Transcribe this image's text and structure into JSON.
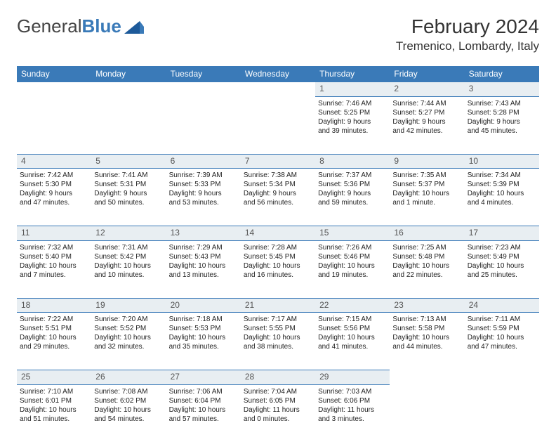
{
  "brand": {
    "part1": "General",
    "part2": "Blue"
  },
  "title": "February 2024",
  "location": "Tremenico, Lombardy, Italy",
  "colors": {
    "header_bg": "#3a7ab8",
    "header_text": "#ffffff",
    "daynum_bg": "#e8eef2",
    "rule": "#3a7ab8",
    "page_bg": "#ffffff",
    "text": "#222222"
  },
  "weekdays": [
    "Sunday",
    "Monday",
    "Tuesday",
    "Wednesday",
    "Thursday",
    "Friday",
    "Saturday"
  ],
  "weeks": [
    [
      null,
      null,
      null,
      null,
      {
        "n": "1",
        "sr": "Sunrise: 7:46 AM",
        "ss": "Sunset: 5:25 PM",
        "dl1": "Daylight: 9 hours",
        "dl2": "and 39 minutes."
      },
      {
        "n": "2",
        "sr": "Sunrise: 7:44 AM",
        "ss": "Sunset: 5:27 PM",
        "dl1": "Daylight: 9 hours",
        "dl2": "and 42 minutes."
      },
      {
        "n": "3",
        "sr": "Sunrise: 7:43 AM",
        "ss": "Sunset: 5:28 PM",
        "dl1": "Daylight: 9 hours",
        "dl2": "and 45 minutes."
      }
    ],
    [
      {
        "n": "4",
        "sr": "Sunrise: 7:42 AM",
        "ss": "Sunset: 5:30 PM",
        "dl1": "Daylight: 9 hours",
        "dl2": "and 47 minutes."
      },
      {
        "n": "5",
        "sr": "Sunrise: 7:41 AM",
        "ss": "Sunset: 5:31 PM",
        "dl1": "Daylight: 9 hours",
        "dl2": "and 50 minutes."
      },
      {
        "n": "6",
        "sr": "Sunrise: 7:39 AM",
        "ss": "Sunset: 5:33 PM",
        "dl1": "Daylight: 9 hours",
        "dl2": "and 53 minutes."
      },
      {
        "n": "7",
        "sr": "Sunrise: 7:38 AM",
        "ss": "Sunset: 5:34 PM",
        "dl1": "Daylight: 9 hours",
        "dl2": "and 56 minutes."
      },
      {
        "n": "8",
        "sr": "Sunrise: 7:37 AM",
        "ss": "Sunset: 5:36 PM",
        "dl1": "Daylight: 9 hours",
        "dl2": "and 59 minutes."
      },
      {
        "n": "9",
        "sr": "Sunrise: 7:35 AM",
        "ss": "Sunset: 5:37 PM",
        "dl1": "Daylight: 10 hours",
        "dl2": "and 1 minute."
      },
      {
        "n": "10",
        "sr": "Sunrise: 7:34 AM",
        "ss": "Sunset: 5:39 PM",
        "dl1": "Daylight: 10 hours",
        "dl2": "and 4 minutes."
      }
    ],
    [
      {
        "n": "11",
        "sr": "Sunrise: 7:32 AM",
        "ss": "Sunset: 5:40 PM",
        "dl1": "Daylight: 10 hours",
        "dl2": "and 7 minutes."
      },
      {
        "n": "12",
        "sr": "Sunrise: 7:31 AM",
        "ss": "Sunset: 5:42 PM",
        "dl1": "Daylight: 10 hours",
        "dl2": "and 10 minutes."
      },
      {
        "n": "13",
        "sr": "Sunrise: 7:29 AM",
        "ss": "Sunset: 5:43 PM",
        "dl1": "Daylight: 10 hours",
        "dl2": "and 13 minutes."
      },
      {
        "n": "14",
        "sr": "Sunrise: 7:28 AM",
        "ss": "Sunset: 5:45 PM",
        "dl1": "Daylight: 10 hours",
        "dl2": "and 16 minutes."
      },
      {
        "n": "15",
        "sr": "Sunrise: 7:26 AM",
        "ss": "Sunset: 5:46 PM",
        "dl1": "Daylight: 10 hours",
        "dl2": "and 19 minutes."
      },
      {
        "n": "16",
        "sr": "Sunrise: 7:25 AM",
        "ss": "Sunset: 5:48 PM",
        "dl1": "Daylight: 10 hours",
        "dl2": "and 22 minutes."
      },
      {
        "n": "17",
        "sr": "Sunrise: 7:23 AM",
        "ss": "Sunset: 5:49 PM",
        "dl1": "Daylight: 10 hours",
        "dl2": "and 25 minutes."
      }
    ],
    [
      {
        "n": "18",
        "sr": "Sunrise: 7:22 AM",
        "ss": "Sunset: 5:51 PM",
        "dl1": "Daylight: 10 hours",
        "dl2": "and 29 minutes."
      },
      {
        "n": "19",
        "sr": "Sunrise: 7:20 AM",
        "ss": "Sunset: 5:52 PM",
        "dl1": "Daylight: 10 hours",
        "dl2": "and 32 minutes."
      },
      {
        "n": "20",
        "sr": "Sunrise: 7:18 AM",
        "ss": "Sunset: 5:53 PM",
        "dl1": "Daylight: 10 hours",
        "dl2": "and 35 minutes."
      },
      {
        "n": "21",
        "sr": "Sunrise: 7:17 AM",
        "ss": "Sunset: 5:55 PM",
        "dl1": "Daylight: 10 hours",
        "dl2": "and 38 minutes."
      },
      {
        "n": "22",
        "sr": "Sunrise: 7:15 AM",
        "ss": "Sunset: 5:56 PM",
        "dl1": "Daylight: 10 hours",
        "dl2": "and 41 minutes."
      },
      {
        "n": "23",
        "sr": "Sunrise: 7:13 AM",
        "ss": "Sunset: 5:58 PM",
        "dl1": "Daylight: 10 hours",
        "dl2": "and 44 minutes."
      },
      {
        "n": "24",
        "sr": "Sunrise: 7:11 AM",
        "ss": "Sunset: 5:59 PM",
        "dl1": "Daylight: 10 hours",
        "dl2": "and 47 minutes."
      }
    ],
    [
      {
        "n": "25",
        "sr": "Sunrise: 7:10 AM",
        "ss": "Sunset: 6:01 PM",
        "dl1": "Daylight: 10 hours",
        "dl2": "and 51 minutes."
      },
      {
        "n": "26",
        "sr": "Sunrise: 7:08 AM",
        "ss": "Sunset: 6:02 PM",
        "dl1": "Daylight: 10 hours",
        "dl2": "and 54 minutes."
      },
      {
        "n": "27",
        "sr": "Sunrise: 7:06 AM",
        "ss": "Sunset: 6:04 PM",
        "dl1": "Daylight: 10 hours",
        "dl2": "and 57 minutes."
      },
      {
        "n": "28",
        "sr": "Sunrise: 7:04 AM",
        "ss": "Sunset: 6:05 PM",
        "dl1": "Daylight: 11 hours",
        "dl2": "and 0 minutes."
      },
      {
        "n": "29",
        "sr": "Sunrise: 7:03 AM",
        "ss": "Sunset: 6:06 PM",
        "dl1": "Daylight: 11 hours",
        "dl2": "and 3 minutes."
      },
      null,
      null
    ]
  ]
}
